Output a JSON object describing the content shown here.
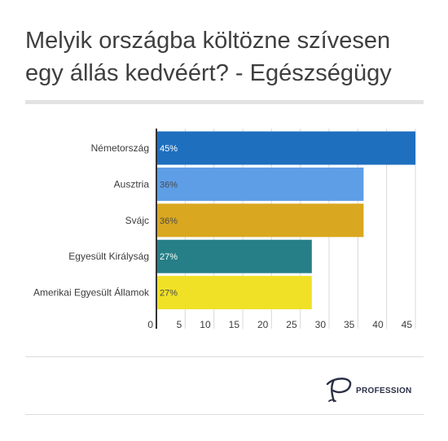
{
  "title": "Melyik országba költözne szívesen egy állás kedvéért? - Egészségügy",
  "brand": {
    "name": "PROFESSION",
    "logo_icon": "profession-p-logo-icon"
  },
  "chart_data": {
    "type": "bar",
    "orientation": "horizontal",
    "categories": [
      "Németország",
      "Ausztria",
      "Svájc",
      "Egyesült Királyság",
      "Amerikai Egyesült Államok"
    ],
    "values": [
      45,
      36,
      36,
      27,
      27
    ],
    "value_labels": [
      "45%",
      "36%",
      "36%",
      "27%",
      "27%"
    ],
    "colors": [
      "#1f6fbf",
      "#5e9ee6",
      "#d9a820",
      "#267f86",
      "#f0e126"
    ],
    "label_dark": [
      false,
      true,
      true,
      false,
      true
    ],
    "xlim": [
      0,
      45
    ],
    "xticks": [
      0,
      5,
      10,
      15,
      20,
      25,
      30,
      35,
      40,
      45
    ],
    "xlabel": "",
    "ylabel": "",
    "grid": true,
    "legend": "none"
  }
}
